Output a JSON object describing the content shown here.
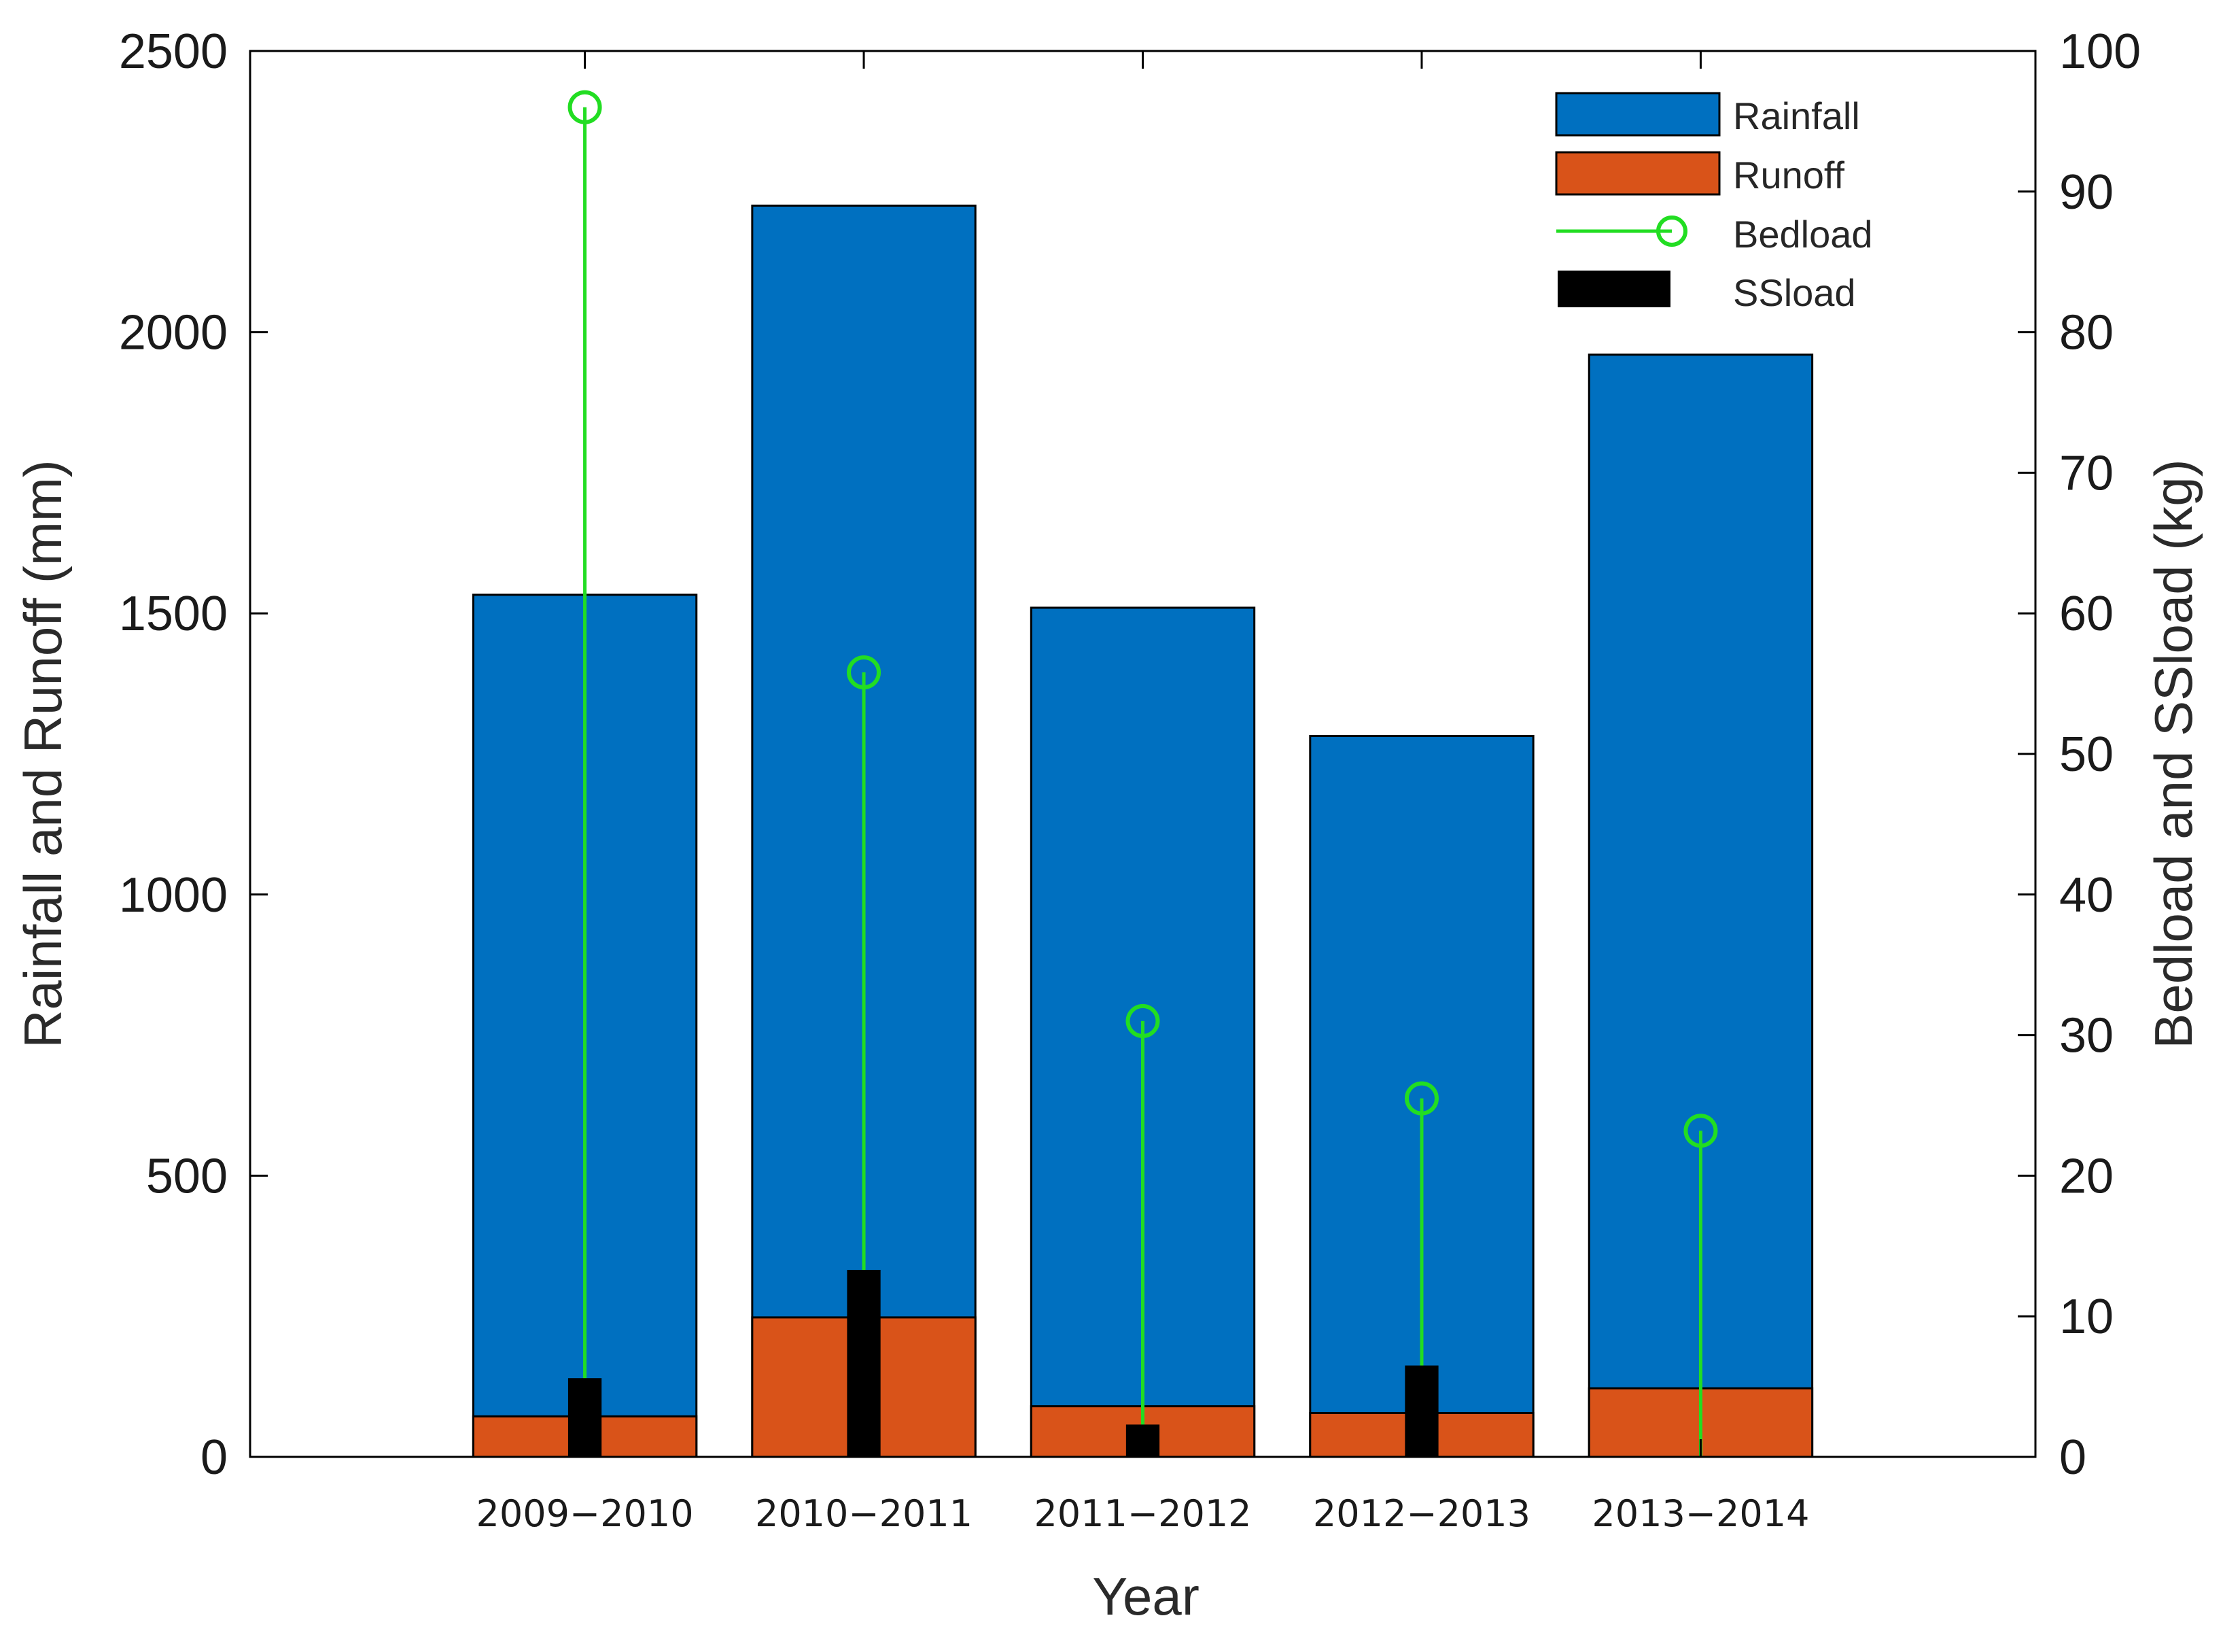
{
  "chart_data": {
    "type": "bar",
    "categories": [
      "2009−2010",
      "2010−2011",
      "2011−2012",
      "2012−2013",
      "2013−2014"
    ],
    "series": [
      {
        "name": "Rainfall",
        "axis": "left",
        "kind": "bar",
        "color": "#0070C0",
        "values": [
          1533,
          2225,
          1510,
          1282,
          1960
        ]
      },
      {
        "name": "Runoff",
        "axis": "left",
        "kind": "bar",
        "color": "#D95319",
        "values": [
          72,
          248,
          90,
          78,
          122
        ]
      },
      {
        "name": "Bedload",
        "axis": "right",
        "kind": "stem",
        "color": "#22DD22",
        "values": [
          96,
          55.8,
          31,
          25.5,
          23.2
        ]
      },
      {
        "name": "SSload",
        "axis": "right",
        "kind": "bar",
        "color": "#000000",
        "values": [
          5.6,
          13.3,
          2.3,
          6.5,
          0
        ]
      }
    ],
    "xlabel": "Year",
    "ylabel": "Rainfall and Runoff (mm)",
    "y2label": "Bedload and SSload (kg)",
    "ylim": [
      0,
      2500
    ],
    "y2lim": [
      0,
      100
    ],
    "yticks": [
      "0",
      "500",
      "1000",
      "1500",
      "2000",
      "2500"
    ],
    "y2ticks": [
      "0",
      "10",
      "20",
      "30",
      "40",
      "50",
      "60",
      "70",
      "80",
      "90",
      "100"
    ],
    "xlim": [
      -0.2,
      6.2
    ],
    "legend": {
      "position": "top-right",
      "entries": [
        "Rainfall",
        "Runoff",
        "Bedload",
        "SSload"
      ]
    },
    "grid": false
  }
}
